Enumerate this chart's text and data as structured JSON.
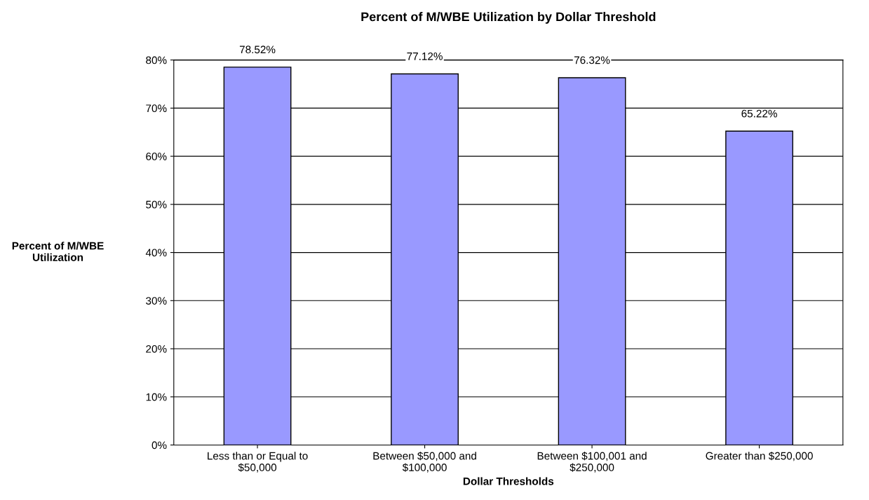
{
  "chart_data": {
    "type": "bar",
    "title": "Percent of M/WBE Utilization by Dollar Threshold",
    "xlabel": "Dollar Thresholds",
    "ylabel": "Percent of M/WBE\nUtilization",
    "categories": [
      "Less than or Equal to\n$50,000",
      "Between $50,000 and\n$100,000",
      "Between $100,001 and\n$250,000",
      "Greater than $250,000"
    ],
    "values": [
      78.52,
      77.12,
      76.32,
      65.22
    ],
    "value_labels": [
      "78.52%",
      "77.12%",
      "76.32%",
      "65.22%"
    ],
    "color": "#9999ff",
    "ylim": [
      0,
      80
    ],
    "yticks": [
      {
        "value": 0,
        "label": "0%"
      },
      {
        "value": 10,
        "label": "10%"
      },
      {
        "value": 20,
        "label": "20%"
      },
      {
        "value": 30,
        "label": "30%"
      },
      {
        "value": 40,
        "label": "40%"
      },
      {
        "value": 50,
        "label": "50%"
      },
      {
        "value": 60,
        "label": "60%"
      },
      {
        "value": 70,
        "label": "70%"
      },
      {
        "value": 80,
        "label": "80%"
      }
    ],
    "grid": "y"
  }
}
